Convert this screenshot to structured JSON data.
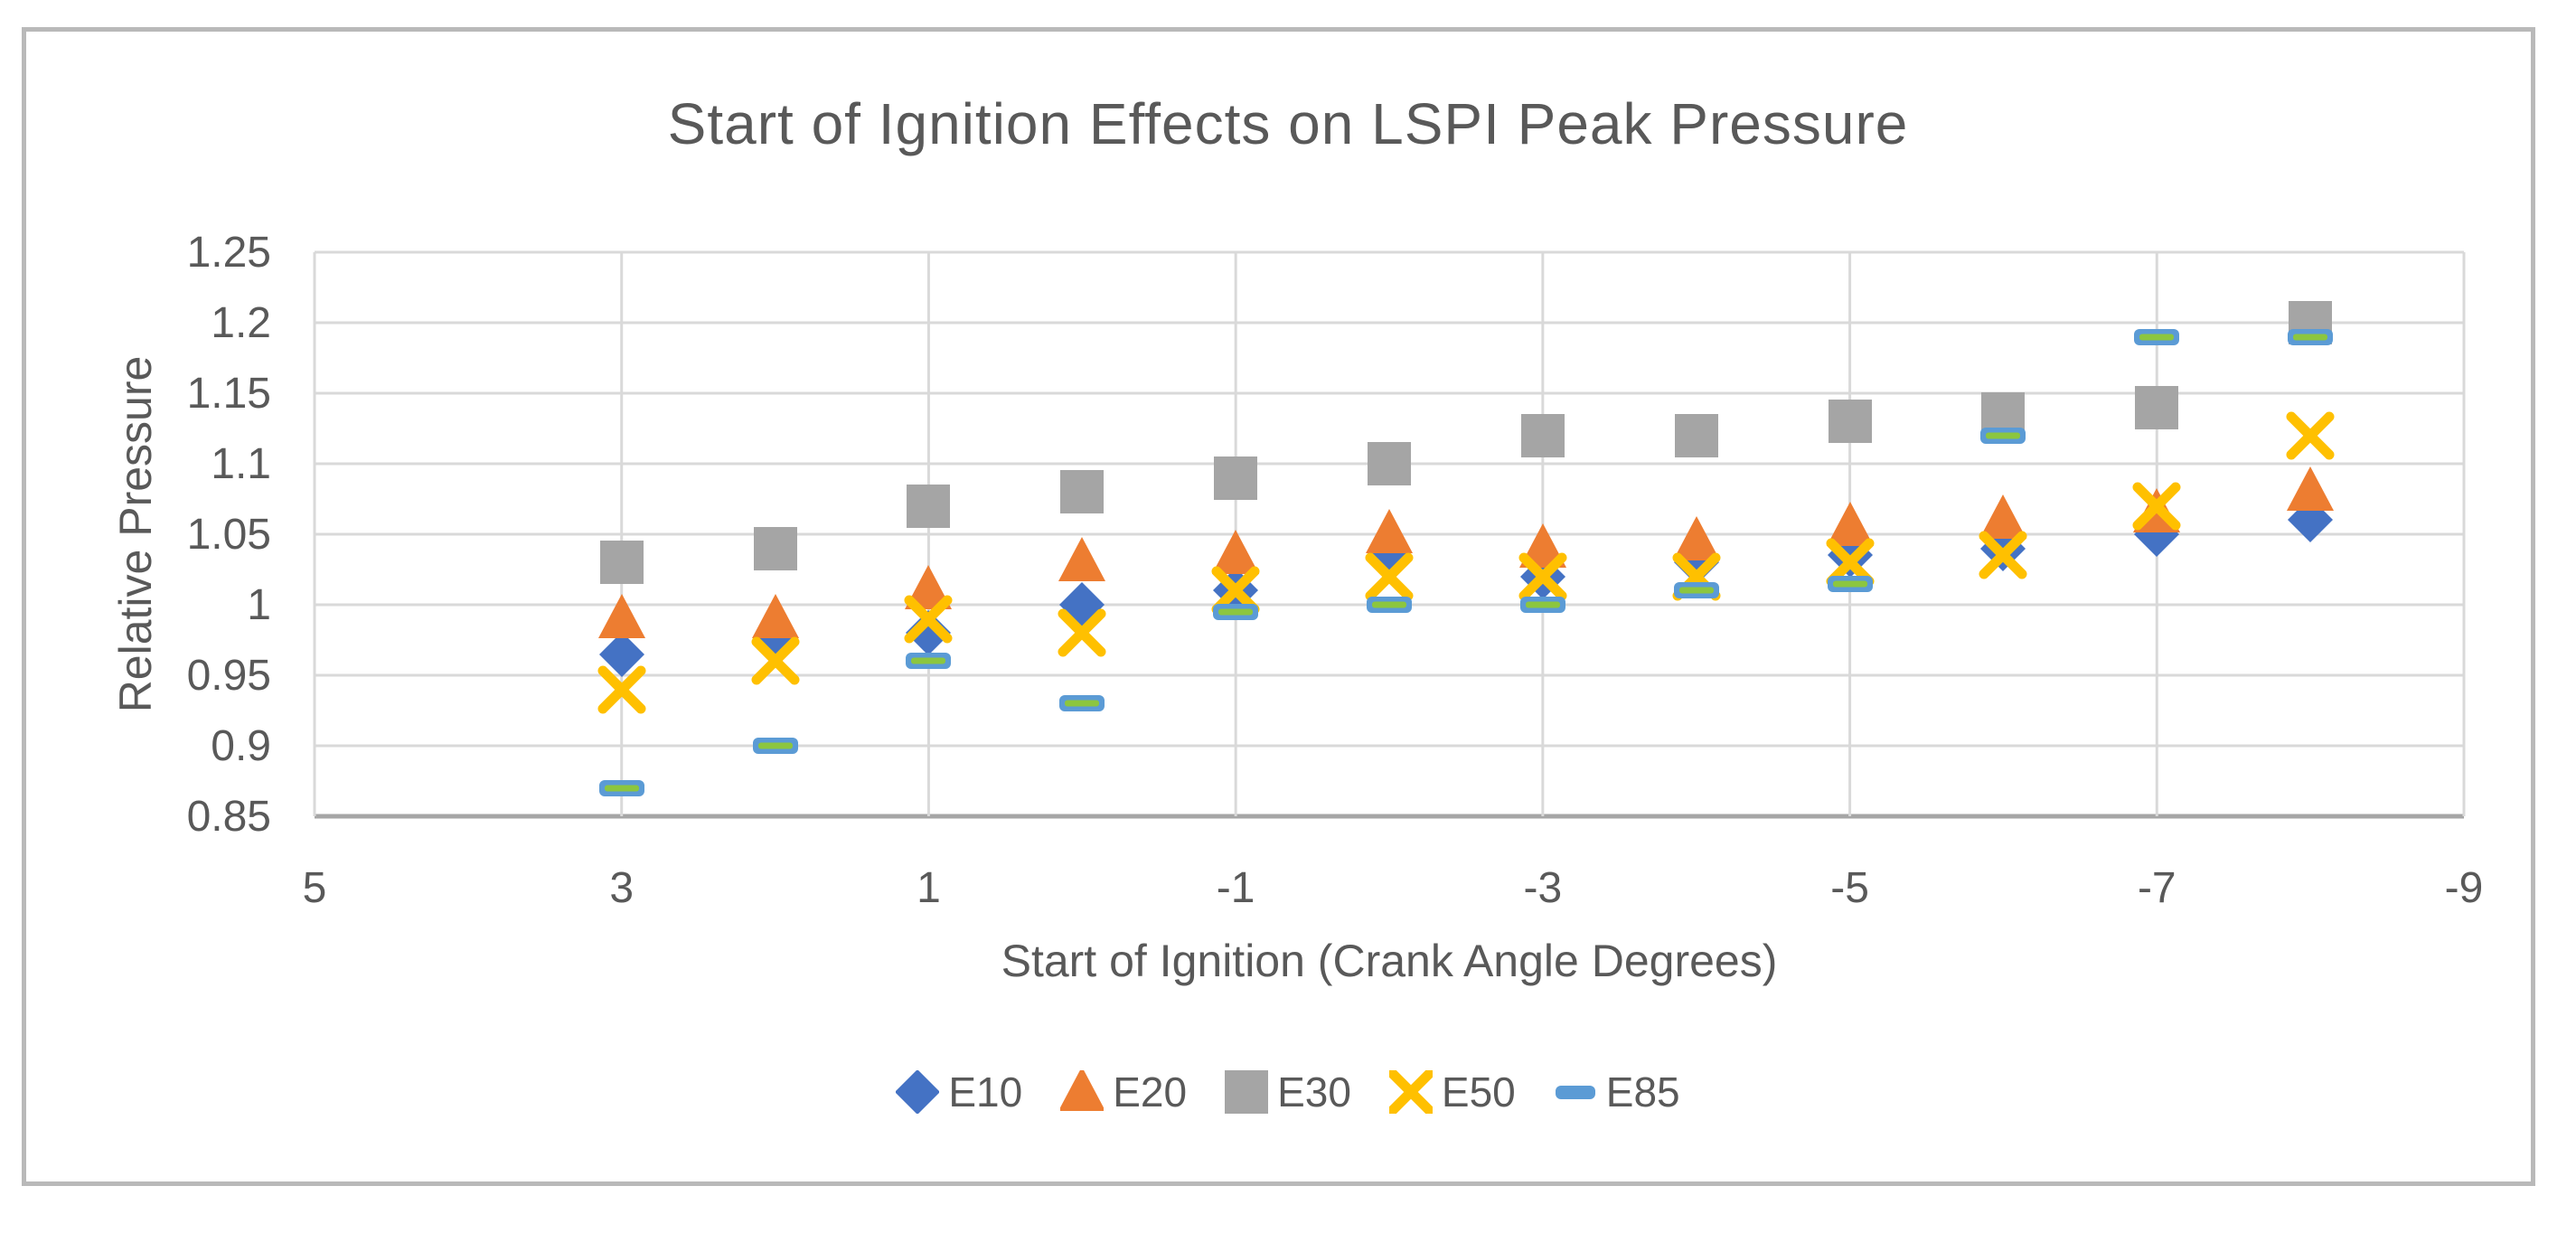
{
  "frame": {
    "border_color": "#b9b9b9"
  },
  "chart_data": {
    "type": "scatter",
    "title": "Start of Ignition Effects on LSPI Peak Pressure",
    "xlabel": "Start of Ignition (Crank Angle Degrees)",
    "ylabel": "Relative Pressure",
    "xlim": [
      5,
      -9
    ],
    "ylim": [
      0.85,
      1.25
    ],
    "x_axis_reversed": true,
    "grid": "on",
    "legend_position": "bottom",
    "x_ticks": [
      {
        "label": "5",
        "value": 5
      },
      {
        "label": "3",
        "value": 3
      },
      {
        "label": "1",
        "value": 1
      },
      {
        "label": "-1",
        "value": -1
      },
      {
        "label": "-3",
        "value": -3
      },
      {
        "label": "-5",
        "value": -5
      },
      {
        "label": "-7",
        "value": -7
      },
      {
        "label": "-9",
        "value": -9
      }
    ],
    "y_ticks": [
      {
        "label": "0.85",
        "value": 0.85
      },
      {
        "label": "0.9",
        "value": 0.9
      },
      {
        "label": "0.95",
        "value": 0.95
      },
      {
        "label": "1",
        "value": 1
      },
      {
        "label": "1.05",
        "value": 1.05
      },
      {
        "label": "1.1",
        "value": 1.1
      },
      {
        "label": "1.15",
        "value": 1.15
      },
      {
        "label": "1.2",
        "value": 1.2
      },
      {
        "label": "1.25",
        "value": 1.25
      }
    ],
    "x": [
      3,
      2,
      1,
      0,
      -1,
      -2,
      -3,
      -4,
      -5,
      -6,
      -7,
      -8
    ],
    "series": [
      {
        "name": "E10",
        "marker": "diamond",
        "color": "#4472C4",
        "values": [
          0.965,
          0.975,
          0.98,
          1.0,
          1.01,
          1.035,
          1.02,
          1.03,
          1.035,
          1.04,
          1.05,
          1.06
        ]
      },
      {
        "name": "E20",
        "marker": "triangle",
        "color": "#ED7D31",
        "values": [
          0.99,
          0.99,
          1.01,
          1.03,
          1.035,
          1.05,
          1.04,
          1.045,
          1.055,
          1.06,
          1.065,
          1.08
        ]
      },
      {
        "name": "E30",
        "marker": "square",
        "color": "#A5A5A5",
        "values": [
          1.03,
          1.04,
          1.07,
          1.08,
          1.09,
          1.1,
          1.12,
          1.12,
          1.13,
          1.135,
          1.14,
          1.2
        ]
      },
      {
        "name": "E50",
        "marker": "x",
        "color": "#FFC000",
        "values": [
          0.94,
          0.96,
          0.99,
          0.98,
          1.01,
          1.02,
          1.02,
          1.02,
          1.03,
          1.035,
          1.07,
          1.12
        ]
      },
      {
        "name": "E85",
        "marker": "dash",
        "color": "#5B9BD5",
        "dash_inner_color": "#8CC63F",
        "values": [
          0.87,
          0.9,
          0.96,
          0.93,
          0.995,
          1.0,
          1.0,
          1.01,
          1.015,
          1.12,
          1.19,
          1.19
        ]
      }
    ],
    "colors": {
      "text": "#595959",
      "gridline": "#D9D9D9",
      "axis_line": "#A6A6A6"
    }
  }
}
